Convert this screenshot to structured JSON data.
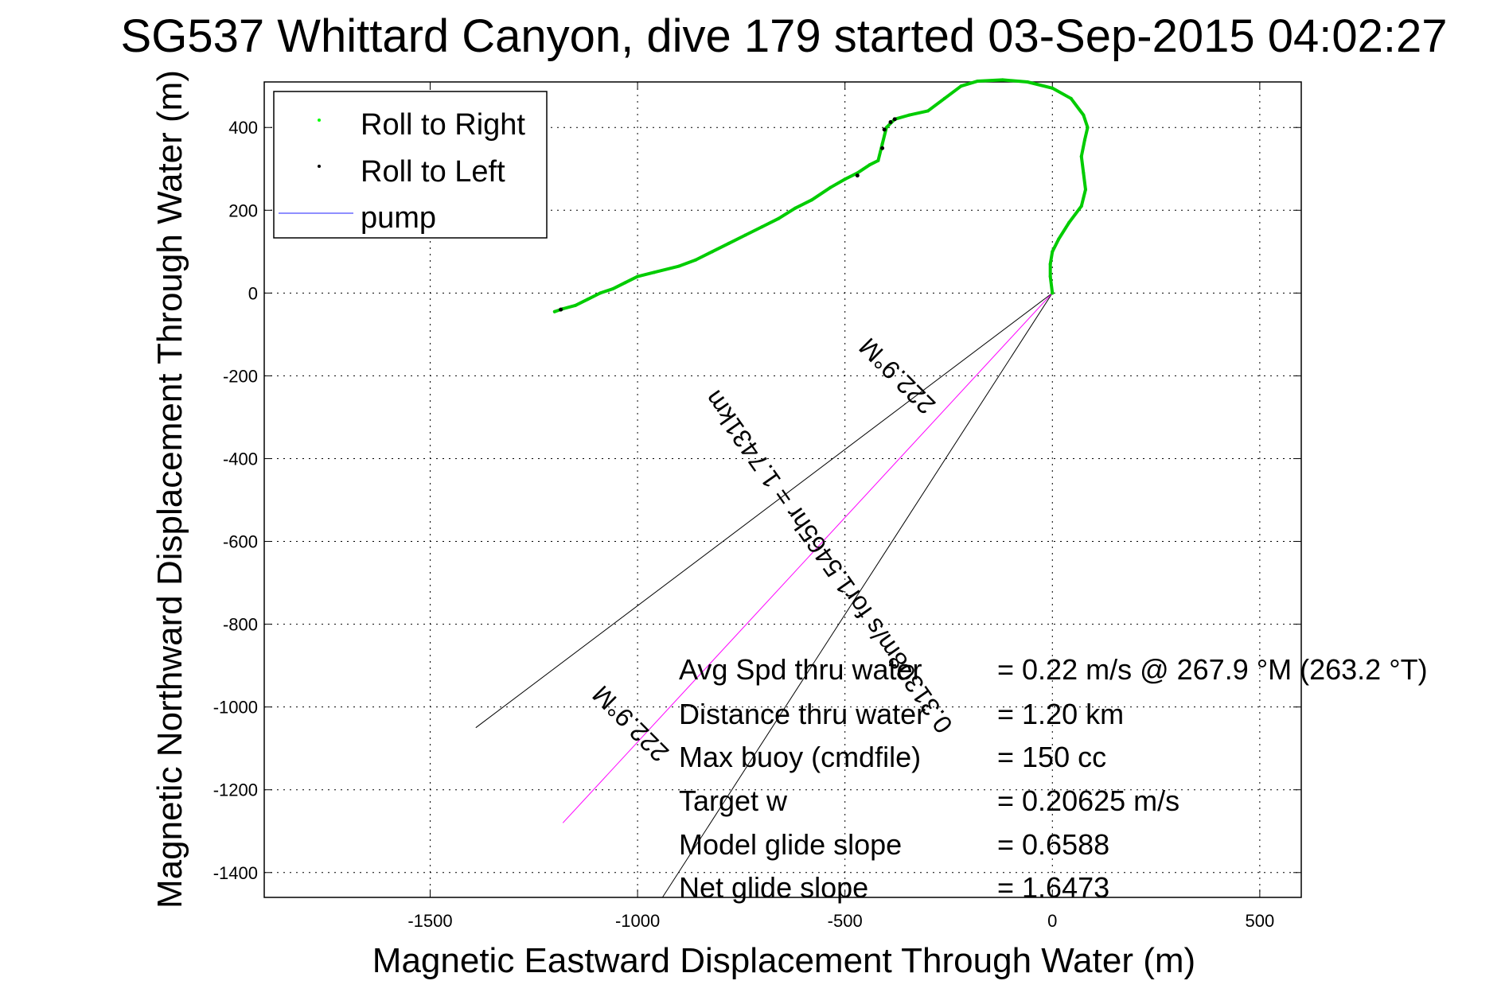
{
  "chart_data": {
    "type": "scatter",
    "title": "SG537 Whittard Canyon, dive 179 started 03-Sep-2015 04:02:27",
    "xlabel": "Magnetic Eastward Displacement Through Water (m)",
    "ylabel": "Magnetic Northward Displacement Through Water (m)",
    "xlim": [
      -1900,
      600
    ],
    "ylim": [
      -1460,
      510
    ],
    "xticks": [
      -1500,
      -1000,
      -500,
      0,
      500
    ],
    "yticks": [
      400,
      200,
      0,
      -200,
      -400,
      -600,
      -800,
      -1000,
      -1200,
      -1400
    ],
    "grid": true,
    "legend": {
      "placement": "top-left",
      "entries": [
        {
          "label": "Roll to Right",
          "color": "#00ff00",
          "marker": "dot"
        },
        {
          "label": "Roll to Left",
          "color": "#000000",
          "marker": "dot"
        },
        {
          "label": "pump",
          "color": "#6a6aff",
          "marker": "line"
        }
      ]
    },
    "series": [
      {
        "name": "Roll to Right",
        "color": "#00cc00",
        "x": [
          0,
          -5,
          -5,
          0,
          15,
          40,
          70,
          80,
          75,
          70,
          78,
          85,
          75,
          45,
          0,
          -60,
          -120,
          -180,
          -220,
          -260,
          -300,
          -345,
          -380,
          -400,
          -410,
          -420,
          -440,
          -470,
          -500,
          -535,
          -580,
          -620,
          -660,
          -700,
          -740,
          -780,
          -820,
          -860,
          -900,
          -960,
          -1000,
          -1030,
          -1060,
          -1090,
          -1120,
          -1150,
          -1180,
          -1200
        ],
        "y": [
          0,
          40,
          70,
          100,
          130,
          170,
          210,
          250,
          290,
          330,
          370,
          400,
          430,
          470,
          495,
          510,
          515,
          512,
          500,
          470,
          440,
          430,
          420,
          400,
          360,
          320,
          310,
          290,
          275,
          255,
          225,
          205,
          180,
          160,
          140,
          120,
          100,
          80,
          65,
          50,
          40,
          25,
          10,
          0,
          -15,
          -30,
          -38,
          -45
        ]
      },
      {
        "name": "Roll to Left",
        "color": "#000000",
        "x": [
          -380,
          -390,
          -405,
          -410,
          -470,
          -1185
        ],
        "y": [
          420,
          413,
          395,
          350,
          284,
          -40
        ]
      }
    ],
    "heading_lines": [
      {
        "name": "limit-1",
        "color": "#000000",
        "to": [
          -1390,
          -1050
        ]
      },
      {
        "name": "limit-2",
        "color": "#000000",
        "to": [
          -940,
          -1460
        ]
      },
      {
        "name": "track",
        "color": "#ff00ff",
        "to": [
          -1180,
          -1280
        ]
      }
    ],
    "heading_labels": [
      "222.9°M",
      "0.31308m/s for1.5465hr = 1.7431km",
      "222.9°M"
    ],
    "stats": [
      {
        "label": "Avg Spd thru water",
        "value": "=  0.22 m/s @ 267.9 °M (263.2 °T)"
      },
      {
        "label": "Distance thru water",
        "value": "=  1.20 km"
      },
      {
        "label": "Max buoy (cmdfile)",
        "value": "= 150 cc"
      },
      {
        "label": "Target w",
        "value": "= 0.20625 m/s"
      },
      {
        "label": "Model glide slope",
        "value": "= 0.6588"
      },
      {
        "label": "Net glide slope",
        "value": "= 1.6473"
      }
    ]
  }
}
